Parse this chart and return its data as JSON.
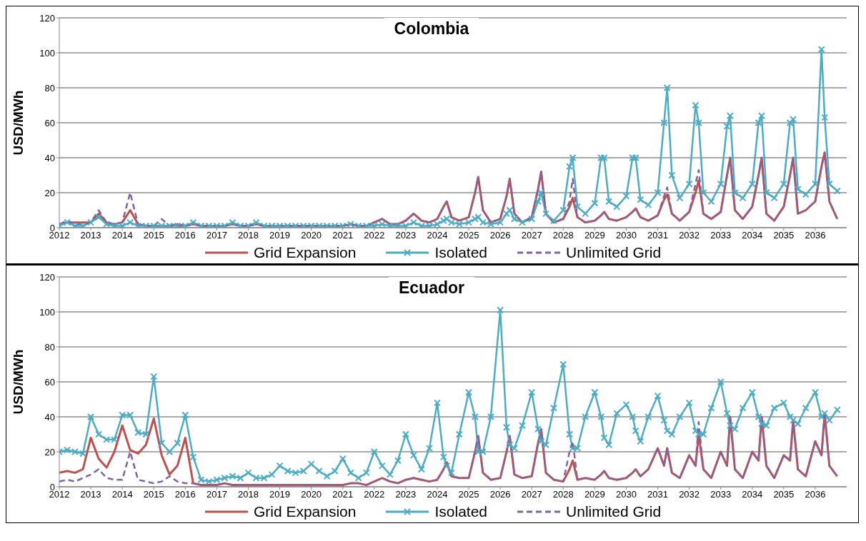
{
  "chart_data": [
    {
      "type": "line",
      "title": "Colombia",
      "ylabel": "USD/MWh",
      "xlim": [
        2012,
        2037
      ],
      "xticks": [
        2012,
        2013,
        2014,
        2015,
        2016,
        2017,
        2018,
        2019,
        2020,
        2021,
        2022,
        2023,
        2024,
        2025,
        2026,
        2027,
        2028,
        2029,
        2030,
        2031,
        2032,
        2033,
        2034,
        2035,
        2036
      ],
      "ylim": [
        0,
        120
      ],
      "yticks": [
        0,
        20,
        40,
        60,
        80,
        100,
        120
      ],
      "grid": "y",
      "legend": "bottom",
      "x": [
        2012,
        2012.25,
        2012.5,
        2012.75,
        2013,
        2013.25,
        2013.5,
        2013.75,
        2014,
        2014.25,
        2014.5,
        2014.75,
        2015,
        2015.25,
        2015.5,
        2015.75,
        2016,
        2016.25,
        2016.5,
        2016.75,
        2017,
        2017.25,
        2017.5,
        2017.75,
        2018,
        2018.25,
        2018.5,
        2018.75,
        2019,
        2019.25,
        2019.5,
        2019.75,
        2020,
        2020.25,
        2020.5,
        2020.75,
        2021,
        2021.25,
        2021.5,
        2021.75,
        2022,
        2022.25,
        2022.5,
        2022.75,
        2023,
        2023.25,
        2023.5,
        2023.75,
        2024,
        2024.2,
        2024.3,
        2024.45,
        2024.7,
        2025,
        2025.2,
        2025.3,
        2025.45,
        2025.7,
        2026,
        2026.2,
        2026.3,
        2026.45,
        2026.7,
        2027,
        2027.2,
        2027.3,
        2027.45,
        2027.7,
        2028,
        2028.2,
        2028.3,
        2028.45,
        2028.7,
        2029,
        2029.2,
        2029.3,
        2029.45,
        2029.7,
        2030,
        2030.2,
        2030.3,
        2030.45,
        2030.7,
        2031,
        2031.2,
        2031.3,
        2031.45,
        2031.7,
        2032,
        2032.2,
        2032.3,
        2032.45,
        2032.7,
        2033,
        2033.2,
        2033.3,
        2033.45,
        2033.7,
        2034,
        2034.2,
        2034.3,
        2034.45,
        2034.7,
        2035,
        2035.2,
        2035.3,
        2035.45,
        2035.7,
        2036,
        2036.2,
        2036.3,
        2036.45,
        2036.7
      ],
      "series": [
        {
          "name": "Grid Expansion",
          "color": "#c0504d",
          "values": [
            2,
            3,
            3,
            3,
            3,
            8,
            3,
            2,
            3,
            10,
            2,
            1,
            1,
            1,
            1,
            2,
            1,
            2,
            1,
            1,
            1,
            1,
            2,
            1,
            1,
            2,
            1,
            1,
            1,
            1,
            1,
            1,
            1,
            1,
            1,
            1,
            1,
            2,
            1,
            1,
            3,
            5,
            2,
            2,
            4,
            8,
            4,
            3,
            5,
            12,
            15,
            6,
            4,
            6,
            20,
            29,
            10,
            3,
            5,
            18,
            28,
            8,
            3,
            6,
            22,
            32,
            8,
            3,
            5,
            12,
            17,
            6,
            3,
            4,
            7,
            9,
            5,
            4,
            6,
            9,
            11,
            6,
            4,
            7,
            16,
            19,
            8,
            4,
            9,
            20,
            27,
            8,
            5,
            9,
            30,
            40,
            10,
            5,
            12,
            30,
            40,
            8,
            4,
            12,
            30,
            40,
            8,
            10,
            15,
            35,
            43,
            15,
            5
          ]
        },
        {
          "name": "Isolated",
          "color": "#4bacc6",
          "marker": "cross",
          "values": [
            1,
            3,
            1,
            1,
            3,
            6,
            2,
            1,
            1,
            3,
            1,
            1,
            1,
            1,
            1,
            1,
            1,
            3,
            1,
            1,
            1,
            1,
            3,
            1,
            1,
            3,
            1,
            1,
            1,
            1,
            1,
            1,
            1,
            1,
            1,
            1,
            1,
            2,
            1,
            1,
            1,
            2,
            1,
            1,
            1,
            3,
            1,
            1,
            2,
            4,
            5,
            3,
            2,
            3,
            5,
            6,
            3,
            2,
            3,
            8,
            10,
            5,
            3,
            5,
            15,
            20,
            8,
            4,
            10,
            35,
            40,
            12,
            8,
            14,
            40,
            40,
            15,
            12,
            18,
            40,
            40,
            16,
            13,
            20,
            60,
            80,
            30,
            17,
            25,
            70,
            60,
            20,
            15,
            25,
            58,
            64,
            20,
            17,
            25,
            60,
            64,
            20,
            17,
            25,
            60,
            62,
            22,
            19,
            25,
            102,
            63,
            25,
            21
          ]
        },
        {
          "name": "Unlimited Grid",
          "color": "#8064a2",
          "line_style": "dashed",
          "values": [
            2,
            4,
            2,
            2,
            3,
            10,
            3,
            2,
            3,
            20,
            2,
            1,
            1,
            5,
            1,
            1,
            1,
            2,
            1,
            1,
            1,
            1,
            2,
            1,
            1,
            2,
            1,
            1,
            1,
            1,
            1,
            1,
            1,
            1,
            1,
            1,
            1,
            2,
            1,
            1,
            3,
            5,
            2,
            2,
            4,
            8,
            4,
            3,
            5,
            12,
            15,
            6,
            4,
            6,
            20,
            29,
            10,
            3,
            5,
            18,
            28,
            8,
            3,
            6,
            22,
            32,
            8,
            3,
            5,
            15,
            28,
            6,
            3,
            4,
            7,
            9,
            5,
            4,
            6,
            9,
            11,
            6,
            4,
            7,
            18,
            23,
            8,
            4,
            9,
            25,
            33,
            8,
            5,
            9,
            30,
            40,
            10,
            5,
            12,
            30,
            40,
            8,
            4,
            12,
            30,
            40,
            8,
            10,
            15,
            35,
            43,
            15,
            5
          ]
        }
      ]
    },
    {
      "type": "line",
      "title": "Ecuador",
      "ylabel": "USD/MWh",
      "xlim": [
        2012,
        2037
      ],
      "xticks": [
        2012,
        2013,
        2014,
        2015,
        2016,
        2017,
        2018,
        2019,
        2020,
        2021,
        2022,
        2023,
        2024,
        2025,
        2026,
        2027,
        2028,
        2029,
        2030,
        2031,
        2032,
        2033,
        2034,
        2035,
        2036
      ],
      "ylim": [
        0,
        120
      ],
      "yticks": [
        0,
        20,
        40,
        60,
        80,
        100,
        120
      ],
      "grid": "y",
      "legend": "bottom",
      "x": [
        2012,
        2012.25,
        2012.5,
        2012.75,
        2013,
        2013.25,
        2013.5,
        2013.75,
        2014,
        2014.25,
        2014.5,
        2014.75,
        2015,
        2015.25,
        2015.5,
        2015.75,
        2016,
        2016.25,
        2016.5,
        2016.75,
        2017,
        2017.25,
        2017.5,
        2017.75,
        2018,
        2018.25,
        2018.5,
        2018.75,
        2019,
        2019.25,
        2019.5,
        2019.75,
        2020,
        2020.25,
        2020.5,
        2020.75,
        2021,
        2021.25,
        2021.5,
        2021.75,
        2022,
        2022.25,
        2022.5,
        2022.75,
        2023,
        2023.25,
        2023.5,
        2023.75,
        2024,
        2024.2,
        2024.3,
        2024.45,
        2024.7,
        2025,
        2025.2,
        2025.3,
        2025.45,
        2025.7,
        2026,
        2026.2,
        2026.3,
        2026.45,
        2026.7,
        2027,
        2027.2,
        2027.3,
        2027.45,
        2027.7,
        2028,
        2028.2,
        2028.3,
        2028.45,
        2028.7,
        2029,
        2029.2,
        2029.3,
        2029.45,
        2029.7,
        2030,
        2030.2,
        2030.3,
        2030.45,
        2030.7,
        2031,
        2031.2,
        2031.3,
        2031.45,
        2031.7,
        2032,
        2032.2,
        2032.3,
        2032.45,
        2032.7,
        2033,
        2033.2,
        2033.3,
        2033.45,
        2033.7,
        2034,
        2034.2,
        2034.3,
        2034.45,
        2034.7,
        2035,
        2035.2,
        2035.3,
        2035.45,
        2035.7,
        2036,
        2036.2,
        2036.3,
        2036.45,
        2036.7
      ],
      "series": [
        {
          "name": "Grid Expansion",
          "color": "#c0504d",
          "values": [
            8,
            9,
            8,
            10,
            28,
            16,
            11,
            20,
            35,
            21,
            19,
            24,
            39,
            18,
            7,
            12,
            28,
            2,
            1,
            1,
            1,
            2,
            1,
            1,
            1,
            1,
            1,
            1,
            1,
            1,
            1,
            1,
            1,
            1,
            1,
            1,
            1,
            2,
            2,
            1,
            3,
            5,
            3,
            2,
            4,
            5,
            4,
            3,
            4,
            10,
            14,
            6,
            5,
            5,
            20,
            29,
            8,
            4,
            5,
            20,
            29,
            7,
            5,
            6,
            25,
            33,
            8,
            4,
            3,
            10,
            15,
            4,
            5,
            4,
            7,
            9,
            5,
            4,
            5,
            8,
            10,
            6,
            10,
            22,
            12,
            22,
            8,
            5,
            18,
            12,
            30,
            10,
            5,
            20,
            12,
            40,
            10,
            5,
            20,
            15,
            40,
            12,
            5,
            18,
            15,
            38,
            10,
            6,
            26,
            18,
            42,
            12,
            6
          ]
        },
        {
          "name": "Isolated",
          "color": "#4bacc6",
          "marker": "cross",
          "values": [
            20,
            21,
            20,
            19,
            40,
            30,
            27,
            27,
            41,
            41,
            31,
            30,
            63,
            25,
            20,
            25,
            41,
            17,
            4,
            3,
            4,
            5,
            6,
            5,
            8,
            5,
            5,
            7,
            12,
            9,
            8,
            9,
            13,
            9,
            6,
            9,
            16,
            8,
            5,
            8,
            20,
            12,
            7,
            15,
            30,
            18,
            10,
            22,
            48,
            17,
            12,
            8,
            30,
            54,
            40,
            20,
            20,
            40,
            101,
            34,
            24,
            22,
            35,
            54,
            33,
            26,
            24,
            45,
            70,
            30,
            22,
            22,
            40,
            54,
            40,
            28,
            24,
            42,
            47,
            40,
            32,
            26,
            40,
            52,
            38,
            32,
            30,
            40,
            48,
            32,
            30,
            30,
            45,
            60,
            42,
            35,
            33,
            45,
            54,
            40,
            36,
            35,
            45,
            48,
            40,
            38,
            36,
            45,
            54,
            40,
            42,
            38,
            44
          ]
        },
        {
          "name": "Unlimited Grid",
          "color": "#8064a2",
          "line_style": "dashed",
          "values": [
            3,
            4,
            3,
            5,
            7,
            10,
            5,
            4,
            4,
            20,
            4,
            3,
            2,
            3,
            6,
            3,
            2,
            2,
            1,
            1,
            1,
            2,
            1,
            1,
            1,
            1,
            1,
            1,
            1,
            1,
            1,
            1,
            1,
            1,
            1,
            1,
            1,
            2,
            2,
            1,
            3,
            5,
            3,
            2,
            4,
            5,
            4,
            3,
            4,
            10,
            14,
            6,
            5,
            5,
            20,
            29,
            8,
            4,
            5,
            20,
            29,
            7,
            5,
            6,
            25,
            33,
            8,
            4,
            3,
            20,
            26,
            4,
            5,
            4,
            7,
            9,
            5,
            4,
            5,
            8,
            10,
            6,
            10,
            22,
            12,
            22,
            8,
            5,
            18,
            12,
            37,
            10,
            5,
            20,
            12,
            40,
            10,
            5,
            20,
            15,
            40,
            12,
            5,
            18,
            15,
            38,
            10,
            6,
            26,
            18,
            42,
            12,
            6
          ]
        }
      ]
    }
  ]
}
